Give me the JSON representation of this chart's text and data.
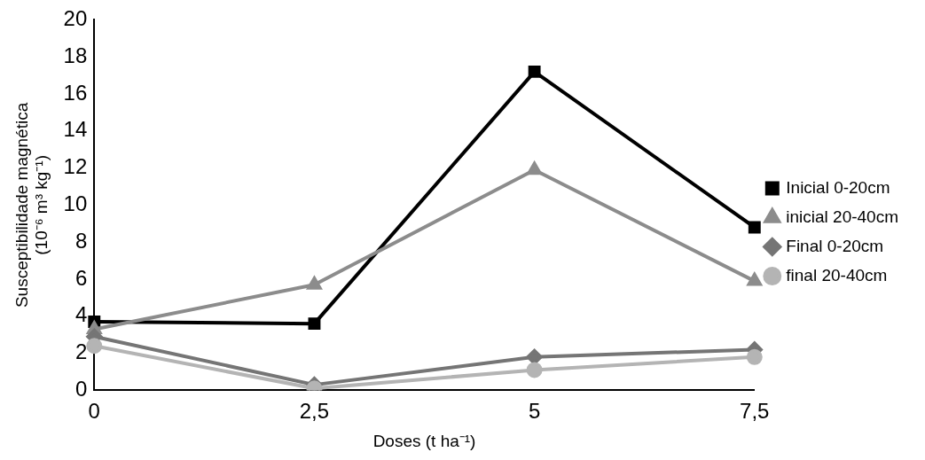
{
  "chart_data": {
    "type": "line",
    "xlabel": "Doses (t ha⁻¹)",
    "ylabel": "Susceptibilidade magnética (10⁻⁶ m³ kg⁻¹)",
    "categories": [
      "0",
      "2,5",
      "5",
      "7,5"
    ],
    "series": [
      {
        "name": "Inicial 0-20cm",
        "color": "#000000",
        "marker": "square",
        "values": [
          3.7,
          3.6,
          17.2,
          8.8
        ]
      },
      {
        "name": "inicial 20-40cm",
        "color": "#8c8c8c",
        "marker": "triangle",
        "values": [
          3.3,
          5.7,
          11.9,
          5.9
        ]
      },
      {
        "name": "Final 0-20cm",
        "color": "#757575",
        "marker": "diamond",
        "values": [
          2.9,
          0.3,
          1.8,
          2.2
        ]
      },
      {
        "name": "final 20-40cm",
        "color": "#b4b4b4",
        "marker": "circle",
        "values": [
          2.4,
          0.1,
          1.1,
          1.8
        ]
      }
    ],
    "ylim": [
      0,
      20
    ],
    "yticks": [
      0,
      2,
      4,
      6,
      8,
      10,
      12,
      14,
      16,
      18,
      20
    ],
    "grid": false,
    "legend": "right"
  }
}
